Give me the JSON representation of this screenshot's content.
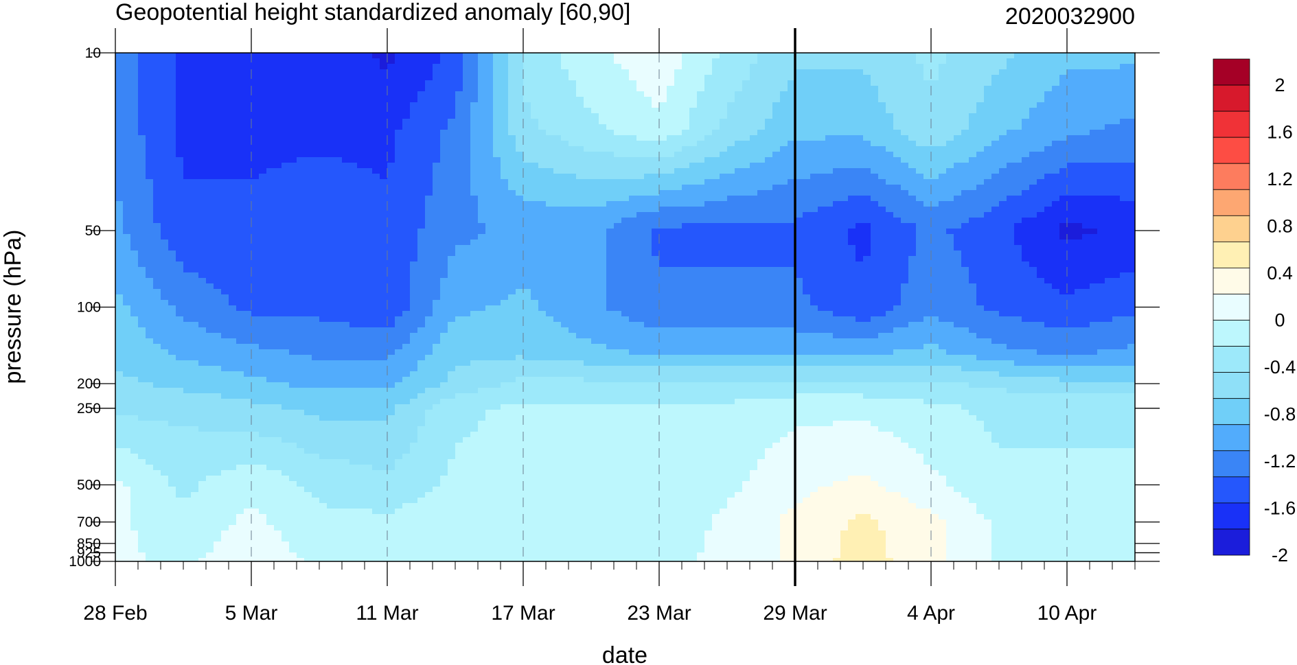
{
  "chart_data": {
    "type": "heatmap",
    "title": "Geopotential height standardized anomaly [60,90]",
    "date_label": "2020032900",
    "xlabel": "date",
    "ylabel": "pressure (hPa)",
    "x_ticks": [
      {
        "day": 0,
        "label": "28 Feb"
      },
      {
        "day": 6,
        "label": "5 Mar"
      },
      {
        "day": 12,
        "label": "11 Mar"
      },
      {
        "day": 18,
        "label": "17 Mar"
      },
      {
        "day": 24,
        "label": "23 Mar"
      },
      {
        "day": 30,
        "label": "29 Mar"
      },
      {
        "day": 36,
        "label": "4 Apr"
      },
      {
        "day": 42,
        "label": "10 Apr"
      }
    ],
    "x_range_days": [
      0,
      45
    ],
    "y_levels": [
      10,
      50,
      100,
      200,
      250,
      500,
      700,
      850,
      925,
      1000
    ],
    "y_tick_labels": [
      "10",
      "50",
      "100",
      "200",
      "250",
      "500",
      "700",
      "850",
      "925",
      "1000"
    ],
    "y_scale": "log",
    "analysis_line_day": 30,
    "colorbar": {
      "labels": [
        "2",
        "1.6",
        "1.2",
        "0.8",
        "0.4",
        "0",
        "-0.4",
        "-0.8",
        "-1.2",
        "-1.6",
        "-2"
      ],
      "colors": [
        "#a50026",
        "#d7192c",
        "#f03237",
        "#fd4d44",
        "#fd7c5e",
        "#fda772",
        "#fed18f",
        "#fff0b4",
        "#fffbe8",
        "#e9fdff",
        "#bdf7fd",
        "#9de9fa",
        "#8fe0f8",
        "#70cff8",
        "#52acfc",
        "#3a85f6",
        "#2557fc",
        "#1931f7",
        "#1b1ddb"
      ]
    },
    "values_days": [
      0,
      3,
      6,
      9,
      12,
      15,
      18,
      21,
      24,
      27,
      30,
      33,
      36,
      39,
      42,
      45
    ],
    "values_levels": [
      10,
      20,
      50,
      100,
      150,
      200,
      250,
      500,
      700,
      1000
    ],
    "values": [
      [
        -1.45,
        -1.85,
        -1.85,
        -1.85,
        -2.05,
        -1.75,
        -0.75,
        -0.45,
        -0.25,
        -0.65,
        -0.95,
        -0.95,
        -0.75,
        -0.95,
        -1.15,
        -1.15
      ],
      [
        -1.45,
        -1.85,
        -1.85,
        -1.85,
        -1.85,
        -1.55,
        -0.85,
        -0.65,
        -0.45,
        -0.85,
        -1.15,
        -1.15,
        -0.85,
        -1.15,
        -1.35,
        -1.45
      ],
      [
        -1.35,
        -1.75,
        -1.75,
        -1.65,
        -1.75,
        -1.45,
        -1.35,
        -1.35,
        -1.65,
        -1.65,
        -1.65,
        -1.85,
        -1.55,
        -1.75,
        -2.05,
        -1.95
      ],
      [
        -1.15,
        -1.45,
        -1.65,
        -1.65,
        -1.75,
        -1.25,
        -1.15,
        -1.35,
        -1.55,
        -1.55,
        -1.55,
        -1.75,
        -1.45,
        -1.65,
        -1.75,
        -1.65
      ],
      [
        -1.05,
        -1.25,
        -1.35,
        -1.45,
        -1.45,
        -1.05,
        -1.05,
        -1.15,
        -1.25,
        -1.25,
        -1.25,
        -1.25,
        -1.15,
        -1.35,
        -1.45,
        -1.35
      ],
      [
        -0.95,
        -1.05,
        -1.15,
        -1.25,
        -1.25,
        -0.95,
        -0.75,
        -0.75,
        -0.75,
        -0.75,
        -0.75,
        -0.75,
        -0.75,
        -0.85,
        -0.95,
        -0.95
      ],
      [
        -0.85,
        -0.85,
        -0.95,
        -1.05,
        -1.05,
        -0.65,
        -0.55,
        -0.55,
        -0.55,
        -0.55,
        -0.45,
        -0.45,
        -0.55,
        -0.65,
        -0.65,
        -0.65
      ],
      [
        -0.35,
        -0.65,
        -0.45,
        -0.65,
        -0.75,
        -0.55,
        -0.55,
        -0.55,
        -0.55,
        -0.45,
        -0.25,
        -0.15,
        -0.35,
        -0.55,
        -0.55,
        -0.55
      ],
      [
        -0.35,
        -0.55,
        -0.35,
        -0.55,
        -0.55,
        -0.45,
        -0.45,
        -0.45,
        -0.55,
        -0.35,
        -0.15,
        0.05,
        -0.15,
        -0.45,
        -0.45,
        -0.45
      ],
      [
        -0.35,
        -0.45,
        -0.25,
        -0.45,
        -0.45,
        -0.45,
        -0.45,
        -0.45,
        -0.45,
        -0.35,
        -0.15,
        0.1,
        -0.15,
        -0.45,
        -0.45,
        -0.45
      ]
    ]
  }
}
